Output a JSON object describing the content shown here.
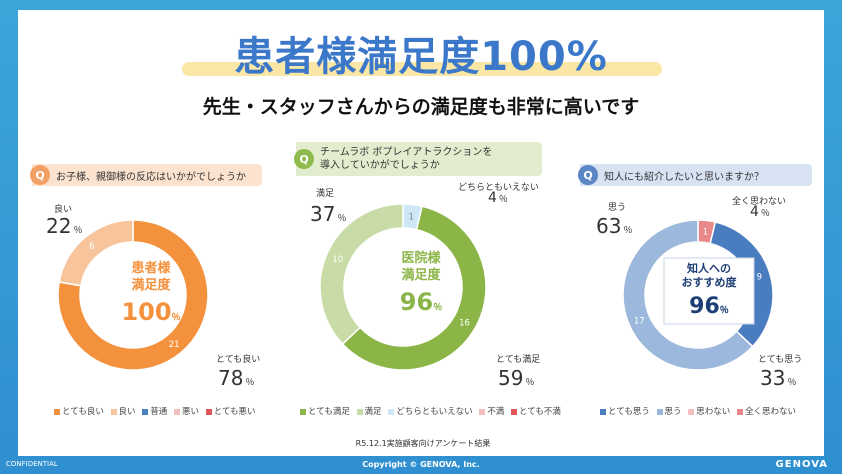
{
  "header": {
    "title": "患者様満足度100%",
    "subtitle": "先生・スタッフさんからの満足度も非常に高いです"
  },
  "colors": {
    "very_good": "#f4913c",
    "good": "#f8c49b",
    "normal": "#4a80c0",
    "bad": "#f3c0c0",
    "very_bad": "#e05555",
    "very_satisfied": "#8cb548",
    "satisfied": "#c9dba6",
    "neutral": "#cfe8f5",
    "dissatisfied": "#f3c0c0",
    "very_dissatisfied": "#e05555",
    "strongly_agree": "#4a7dc0",
    "agree": "#9cb8dc",
    "disagree": "#f3c0c0",
    "strongly_disagree": "#e88888"
  },
  "panel1": {
    "badge": "Q",
    "question": "お子様、親御様の反応はいかがでしょうか",
    "center_line1": "患者様",
    "center_line2": "満足度",
    "center_value": "100",
    "center_unit": "％",
    "callout_good_label": "良い",
    "callout_good_value": "22",
    "callout_verygood_label": "とても良い",
    "callout_verygood_value": "78",
    "pct_unit": "％",
    "legend": [
      "とても良い",
      "良い",
      "普通",
      "悪い",
      "とても悪い"
    ]
  },
  "panel2": {
    "badge": "Q",
    "question_line1": "チームラボ ボプレイアトラクションを",
    "question_line2": "導入していかがでしょうか",
    "center_line1": "医院様",
    "center_line2": "満足度",
    "center_value": "96",
    "center_unit": "％",
    "callout_satisfied_label": "満足",
    "callout_satisfied_value": "37",
    "callout_neutral_label": "どちらともいえない",
    "callout_neutral_value": "4",
    "callout_very_label": "とても満足",
    "callout_very_value": "59",
    "pct_unit": "％",
    "legend": [
      "とても満足",
      "満足",
      "どちらともいえない",
      "不満",
      "とても不満"
    ]
  },
  "panel3": {
    "badge": "Q",
    "question": "知人にも紹介したいと思いますか？",
    "center_line1": "知人への",
    "center_line2": "おすすめ度",
    "center_value": "96",
    "center_unit": "％",
    "callout_agree_label": "思う",
    "callout_agree_value": "63",
    "callout_disagree_label": "全く思わない",
    "callout_disagree_value": "4",
    "callout_strong_label": "とても思う",
    "callout_strong_value": "33",
    "pct_unit": "％",
    "legend": [
      "とても思う",
      "思う",
      "思わない",
      "全く思わない"
    ]
  },
  "source_note": "R5.12.1実施顧客向けアンケート結果",
  "footer": {
    "confidential": "CONFIDENTIAL",
    "copyright": "Copyright © GENOVA, Inc.",
    "brand": "GENOVA"
  },
  "chart_data": [
    {
      "type": "pie",
      "title": "お子様、親御様の反応はいかがでしょうか",
      "categories": [
        "とても良い",
        "良い",
        "普通",
        "悪い",
        "とても悪い"
      ],
      "values": [
        21,
        6,
        0,
        0,
        0
      ],
      "percentages": [
        78,
        22,
        0,
        0,
        0
      ]
    },
    {
      "type": "pie",
      "title": "チームラボ ボプレイアトラクションを導入していかがでしょうか",
      "categories": [
        "とても満足",
        "満足",
        "どちらともいえない",
        "不満",
        "とても不満"
      ],
      "values": [
        16,
        10,
        1,
        0,
        0
      ],
      "percentages": [
        59,
        37,
        4,
        0,
        0
      ]
    },
    {
      "type": "pie",
      "title": "知人にも紹介したいと思いますか？",
      "categories": [
        "とても思う",
        "思う",
        "思わない",
        "全く思わない"
      ],
      "values": [
        9,
        17,
        0,
        1
      ],
      "percentages": [
        33,
        63,
        0,
        4
      ]
    }
  ]
}
